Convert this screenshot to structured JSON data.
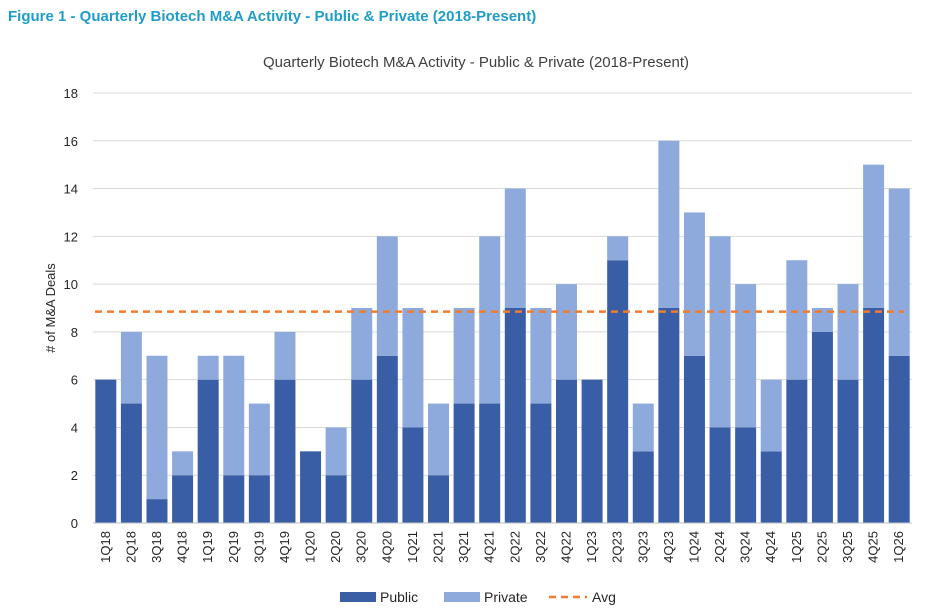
{
  "figure_caption": "Figure 1 - Quarterly Biotech M&A Activity - Public & Private (2018-Present)",
  "chart_data": {
    "type": "bar",
    "stacked": true,
    "title": "Quarterly Biotech M&A Activity - Public & Private (2018-Present)",
    "xlabel": "",
    "ylabel": "# of M&A Deals",
    "ylim": [
      0,
      18
    ],
    "yticks": [
      0,
      2,
      4,
      6,
      8,
      10,
      12,
      14,
      16,
      18
    ],
    "grid": true,
    "legend_position": "bottom",
    "categories": [
      "1Q18",
      "2Q18",
      "3Q18",
      "4Q18",
      "1Q19",
      "2Q19",
      "3Q19",
      "4Q19",
      "1Q20",
      "2Q20",
      "3Q20",
      "4Q20",
      "1Q21",
      "2Q21",
      "3Q21",
      "4Q21",
      "2Q22",
      "3Q22",
      "4Q22",
      "1Q23",
      "2Q23",
      "3Q23",
      "4Q23",
      "1Q24",
      "2Q24",
      "3Q24",
      "4Q24",
      "1Q25",
      "2Q25",
      "3Q25",
      "4Q25",
      "1Q26"
    ],
    "series": [
      {
        "name": "Public",
        "color": "#3a5ea6",
        "values": [
          6,
          5,
          1,
          2,
          6,
          2,
          2,
          6,
          3,
          2,
          6,
          7,
          4,
          2,
          5,
          5,
          9,
          5,
          6,
          6,
          11,
          3,
          9,
          7,
          4,
          4,
          3,
          6,
          8,
          6,
          9,
          7
        ]
      },
      {
        "name": "Private",
        "color": "#8eaadc",
        "values": [
          0,
          3,
          6,
          1,
          1,
          5,
          3,
          2,
          0,
          2,
          3,
          5,
          5,
          3,
          4,
          7,
          5,
          4,
          4,
          0,
          1,
          2,
          7,
          6,
          8,
          6,
          3,
          5,
          1,
          4,
          6,
          7
        ]
      }
    ],
    "avg_line": {
      "name": "Avg",
      "value": 8.85,
      "color": "#ed7d31"
    }
  }
}
